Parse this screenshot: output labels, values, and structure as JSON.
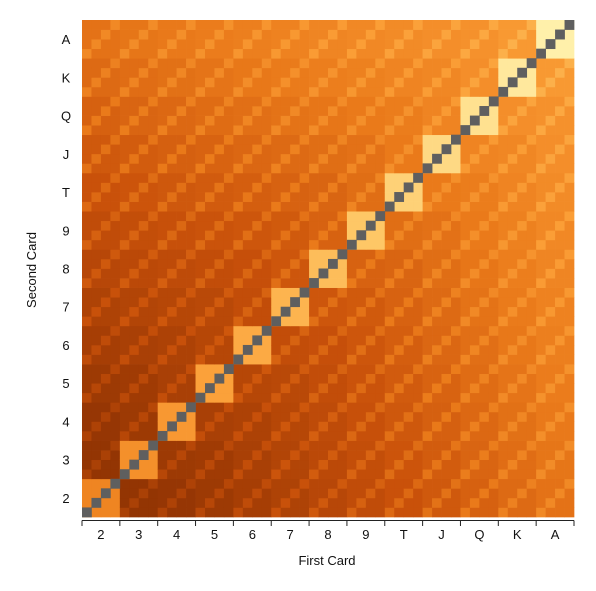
{
  "chart_data": {
    "type": "heatmap",
    "title": "",
    "xlabel": "First Card",
    "ylabel": "Second Card",
    "x_categories": [
      "2",
      "3",
      "4",
      "5",
      "6",
      "7",
      "8",
      "9",
      "T",
      "J",
      "Q",
      "K",
      "A"
    ],
    "y_categories": [
      "2",
      "3",
      "4",
      "5",
      "6",
      "7",
      "8",
      "9",
      "T",
      "J",
      "Q",
      "K",
      "A"
    ],
    "subgrid_cells_per_rank": 4,
    "value_scale": "relative strength of the two-card combination (0 = weakest, 1 = strongest)",
    "pair_values": [
      0.55,
      0.6,
      0.64,
      0.68,
      0.72,
      0.76,
      0.8,
      0.84,
      0.88,
      0.91,
      0.94,
      0.97,
      1.0
    ],
    "diagonal_color": "#5f5f5f",
    "colormap": [
      "#7a2a02",
      "#9e3a04",
      "#c9510a",
      "#ea7a1a",
      "#fb9e36",
      "#fec563",
      "#fff0aa"
    ],
    "grid": false,
    "legend": "none"
  }
}
